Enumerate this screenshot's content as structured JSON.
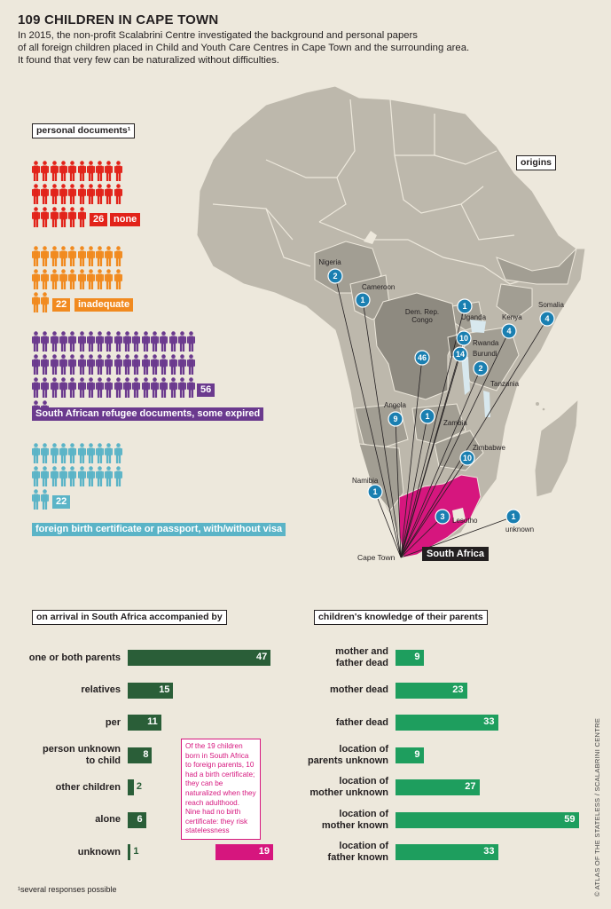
{
  "title": "109 CHILDREN IN CAPE TOWN",
  "intro": [
    "In 2015, the non-profit Scalabrini Centre investigated the background and personal papers",
    "of all foreign children placed in Child and Youth Care Centres in Cape Town and the surrounding area.",
    "It found that very few can be naturalized without difficulties."
  ],
  "documents": {
    "heading": "personal documents¹",
    "groups": [
      {
        "count": 26,
        "count_label": "26",
        "label": "none",
        "color": "#e2231a"
      },
      {
        "count": 22,
        "count_label": "22",
        "label": "inadequate",
        "color": "#f18a1f"
      },
      {
        "count": 56,
        "count_label": "56",
        "label": "South African refugee documents, some expired",
        "color": "#6b3a8e"
      },
      {
        "count": 22,
        "count_label": "22",
        "label": "foreign birth certificate or passport, with/without visa",
        "color": "#5bb4c7"
      }
    ]
  },
  "map": {
    "heading": "origins",
    "destination_label": "South Africa",
    "city_label": "Cape Town",
    "origins": [
      {
        "name": "Nigeria",
        "count": "2"
      },
      {
        "name": "Cameroon",
        "count": "1"
      },
      {
        "name": "Uganda",
        "count": "1"
      },
      {
        "name": "Somalia",
        "count": "4"
      },
      {
        "name": "Kenya",
        "count": "4"
      },
      {
        "name": "Dem. Rep. Congo",
        "count": "46"
      },
      {
        "name": "Rwanda",
        "count": "10"
      },
      {
        "name": "Burundi",
        "count": "14"
      },
      {
        "name": "Tanzania",
        "count": "2"
      },
      {
        "name": "Angola",
        "count": "9"
      },
      {
        "name": "Zambia",
        "count": "1"
      },
      {
        "name": "Zimbabwe",
        "count": "10"
      },
      {
        "name": "Namibia",
        "count": "1"
      },
      {
        "name": "Lesotho",
        "count": "3"
      },
      {
        "name": "unknown",
        "count": "1"
      }
    ],
    "colors": {
      "land": "#bdb8ac",
      "highlight": "#a29e93",
      "dark": "#8e8a80",
      "south_africa": "#d6167e",
      "marker": "#1a7fb1"
    }
  },
  "chart_data": [
    {
      "type": "bar",
      "title": "on arrival in South Africa accompanied by",
      "categories": [
        "one or both parents",
        "relatives",
        "per",
        "person unknown to child",
        "other children",
        "alone",
        "unknown"
      ],
      "values": [
        47,
        15,
        11,
        8,
        2,
        6,
        1
      ],
      "extra": {
        "category": "unknown",
        "value": 19,
        "color": "#d6167e"
      },
      "color": "#2a5e38"
    },
    {
      "type": "bar",
      "title": "children's knowledge of their parents",
      "categories": [
        "mother and father dead",
        "mother dead",
        "father dead",
        "location of parents unknown",
        "location of mother unknown",
        "location of mother known",
        "location of father known"
      ],
      "values": [
        9,
        23,
        33,
        9,
        27,
        59,
        33
      ],
      "color": "#1e9e5e"
    }
  ],
  "note": "Of the 19 children born in South Africa to foreign parents, 10 had a birth certificate; they can be naturalized when they reach adulthood. Nine had no birth certificate: they risk statelessness",
  "footnote": "¹several responses possible",
  "credit": "© ATLAS OF THE STATELESS / SCALABRINI CENTRE"
}
